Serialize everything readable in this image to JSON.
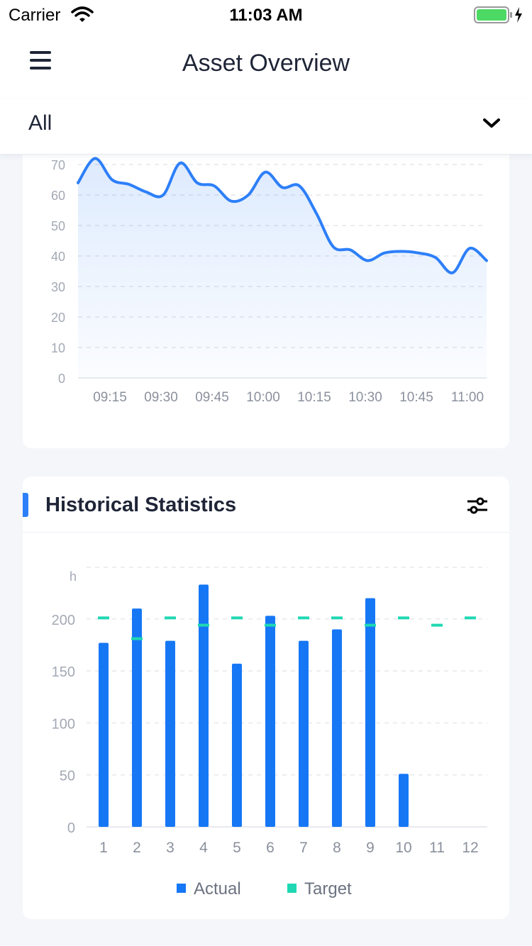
{
  "status_bar": {
    "carrier": "Carrier",
    "time": "11:03 AM"
  },
  "header": {
    "title": "Asset Overview"
  },
  "filter": {
    "value": "All"
  },
  "line_chart": {
    "color": "#2d7ff9",
    "chart_data": {
      "type": "area",
      "x_ticks": [
        "09:15",
        "09:30",
        "09:45",
        "10:00",
        "10:15",
        "10:30",
        "10:45",
        "11:00"
      ],
      "y_ticks": [
        0,
        10,
        20,
        30,
        40,
        50,
        60,
        70
      ],
      "ylim": [
        0,
        70
      ],
      "x_minutes": [
        0,
        5,
        10,
        15,
        20,
        25,
        30,
        35,
        40,
        45,
        50,
        55,
        60,
        65,
        70,
        75,
        80,
        85,
        90,
        95,
        100,
        105,
        110,
        115,
        120
      ],
      "values": [
        64,
        72,
        65,
        63.5,
        61,
        60,
        70.5,
        64,
        63,
        58,
        60,
        67.5,
        62.5,
        63,
        54,
        43,
        42,
        38.5,
        41,
        41.5,
        41,
        39.5,
        34.5,
        42.5,
        38.5
      ],
      "grid": true
    }
  },
  "historical": {
    "title": "Historical Statistics",
    "actual_color": "#1677f5",
    "target_color": "#1fd8b3",
    "chart_data": {
      "type": "bar",
      "categories": [
        "1",
        "2",
        "3",
        "4",
        "5",
        "6",
        "7",
        "8",
        "9",
        "10",
        "11",
        "12"
      ],
      "y_unit": "h",
      "ylim": [
        0,
        250
      ],
      "y_ticks": [
        0,
        50,
        100,
        150,
        200
      ],
      "series": [
        {
          "name": "Actual",
          "values": [
            177,
            210,
            179,
            233,
            157,
            203,
            179,
            190,
            220,
            51,
            null,
            null
          ]
        },
        {
          "name": "Target",
          "values": [
            201,
            181,
            201,
            194,
            201,
            194,
            201,
            201,
            194,
            201,
            194,
            201
          ]
        }
      ],
      "legend": [
        "Actual",
        "Target"
      ],
      "legend_position": "bottom",
      "grid": true
    }
  }
}
